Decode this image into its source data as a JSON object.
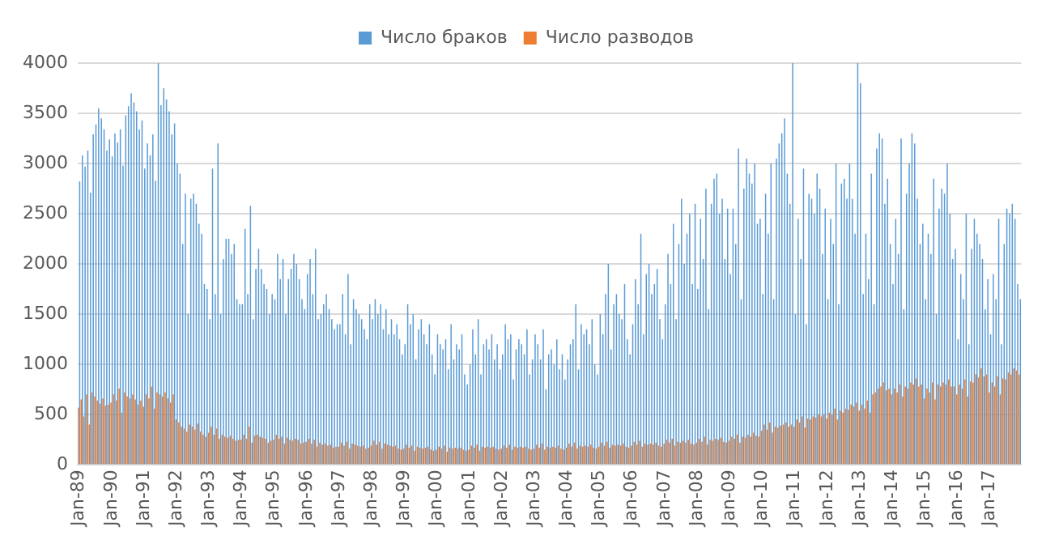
{
  "chart_data": {
    "type": "bar",
    "categories": [
      "Jan-89",
      null,
      null,
      null,
      null,
      null,
      null,
      null,
      null,
      null,
      null,
      null,
      "Jan-90",
      null,
      null,
      null,
      null,
      null,
      null,
      null,
      null,
      null,
      null,
      null,
      "Jan-91",
      null,
      null,
      null,
      null,
      null,
      null,
      null,
      null,
      null,
      null,
      null,
      "Jan-92",
      null,
      null,
      null,
      null,
      null,
      null,
      null,
      null,
      null,
      null,
      null,
      "Jan-93",
      null,
      null,
      null,
      null,
      null,
      null,
      null,
      null,
      null,
      null,
      null,
      "Jan-94",
      null,
      null,
      null,
      null,
      null,
      null,
      null,
      null,
      null,
      null,
      null,
      "Jan-95",
      null,
      null,
      null,
      null,
      null,
      null,
      null,
      null,
      null,
      null,
      null,
      "Jan-96",
      null,
      null,
      null,
      null,
      null,
      null,
      null,
      null,
      null,
      null,
      null,
      "Jan-97",
      null,
      null,
      null,
      null,
      null,
      null,
      null,
      null,
      null,
      null,
      null,
      "Jan-98",
      null,
      null,
      null,
      null,
      null,
      null,
      null,
      null,
      null,
      null,
      null,
      "Jan-99",
      null,
      null,
      null,
      null,
      null,
      null,
      null,
      null,
      null,
      null,
      null,
      "Jan-00",
      null,
      null,
      null,
      null,
      null,
      null,
      null,
      null,
      null,
      null,
      null,
      "Jan-01",
      null,
      null,
      null,
      null,
      null,
      null,
      null,
      null,
      null,
      null,
      null,
      "Jan-02",
      null,
      null,
      null,
      null,
      null,
      null,
      null,
      null,
      null,
      null,
      null,
      "Jan-03",
      null,
      null,
      null,
      null,
      null,
      null,
      null,
      null,
      null,
      null,
      null,
      "Jan-04",
      null,
      null,
      null,
      null,
      null,
      null,
      null,
      null,
      null,
      null,
      null,
      "Jan-05",
      null,
      null,
      null,
      null,
      null,
      null,
      null,
      null,
      null,
      null,
      null,
      "Jan-06",
      null,
      null,
      null,
      null,
      null,
      null,
      null,
      null,
      null,
      null,
      null,
      "Jan-07",
      null,
      null,
      null,
      null,
      null,
      null,
      null,
      null,
      null,
      null,
      null,
      "Jan-08",
      null,
      null,
      null,
      null,
      null,
      null,
      null,
      null,
      null,
      null,
      null,
      "Jan-09",
      null,
      null,
      null,
      null,
      null,
      null,
      null,
      null,
      null,
      null,
      null,
      "Jan-10",
      null,
      null,
      null,
      null,
      null,
      null,
      null,
      null,
      null,
      null,
      null,
      "Jan-11",
      null,
      null,
      null,
      null,
      null,
      null,
      null,
      null,
      null,
      null,
      null,
      "Jan-12",
      null,
      null,
      null,
      null,
      null,
      null,
      null,
      null,
      null,
      null,
      null,
      "Jan-13",
      null,
      null,
      null,
      null,
      null,
      null,
      null,
      null,
      null,
      null,
      null,
      "Jan-14",
      null,
      null,
      null,
      null,
      null,
      null,
      null,
      null,
      null,
      null,
      null,
      "Jan-15",
      null,
      null,
      null,
      null,
      null,
      null,
      null,
      null,
      null,
      null,
      null,
      "Jan-16",
      null,
      null,
      null,
      null,
      null,
      null,
      null,
      null,
      null,
      null,
      null,
      "Jan-17",
      null,
      null,
      null,
      null,
      null,
      null,
      null,
      null,
      null,
      null,
      null
    ],
    "series": [
      {
        "name": "Число браков",
        "color": "#5b9bd5",
        "values": [
          2820,
          3080,
          2970,
          3130,
          2710,
          3290,
          3390,
          3550,
          3450,
          3340,
          3130,
          3240,
          3070,
          3300,
          3210,
          3340,
          2980,
          3480,
          3570,
          3700,
          3610,
          3520,
          3340,
          3430,
          2950,
          3200,
          3080,
          3290,
          2830,
          4000,
          3580,
          3750,
          3640,
          3520,
          3290,
          3400,
          3000,
          2900,
          2200,
          2700,
          1500,
          2650,
          2700,
          2600,
          2400,
          2300,
          1800,
          1750,
          1450,
          2950,
          1700,
          3200,
          1500,
          2050,
          2250,
          2250,
          2100,
          2200,
          1650,
          1600,
          1600,
          2350,
          1700,
          2580,
          1450,
          1950,
          2150,
          1950,
          1800,
          1750,
          1500,
          1700,
          1650,
          2100,
          1850,
          2050,
          1500,
          1850,
          1950,
          2100,
          2000,
          1850,
          1650,
          1550,
          1900,
          2050,
          1700,
          2150,
          1450,
          1500,
          1600,
          1700,
          1550,
          1450,
          1350,
          1400,
          1400,
          1700,
          1300,
          1900,
          1200,
          1650,
          1550,
          1500,
          1450,
          1350,
          1250,
          1600,
          1450,
          1650,
          1500,
          1600,
          1350,
          1550,
          1300,
          1450,
          1300,
          1400,
          1250,
          1100,
          1200,
          1600,
          1400,
          1500,
          1050,
          1350,
          1450,
          1300,
          1200,
          1400,
          1100,
          900,
          1300,
          1200,
          1150,
          1250,
          950,
          1400,
          1050,
          1200,
          1150,
          1300,
          900,
          800,
          1000,
          1350,
          1100,
          1450,
          900,
          1200,
          1250,
          1150,
          1300,
          1050,
          1200,
          950,
          1100,
          1400,
          1250,
          1300,
          850,
          1150,
          1250,
          1200,
          1100,
          1350,
          900,
          1050,
          1300,
          1200,
          1050,
          1350,
          750,
          1100,
          1150,
          1000,
          1250,
          950,
          1100,
          850,
          1050,
          1200,
          1250,
          1600,
          950,
          1400,
          1300,
          1350,
          1200,
          1450,
          1000,
          900,
          1500,
          1300,
          1700,
          2000,
          1150,
          1600,
          1700,
          1500,
          1450,
          1800,
          1250,
          1100,
          1400,
          1850,
          1600,
          2300,
          1300,
          1900,
          2000,
          1700,
          1800,
          1950,
          1450,
          1250,
          1600,
          2100,
          1800,
          2400,
          1450,
          2200,
          2650,
          2000,
          2300,
          2500,
          1800,
          2600,
          1750,
          2450,
          2050,
          2750,
          1550,
          2600,
          2850,
          2900,
          2500,
          2650,
          2050,
          2550,
          1900,
          2550,
          2200,
          3150,
          1650,
          2750,
          3050,
          2900,
          2800,
          3000,
          2400,
          2450,
          1700,
          2700,
          2300,
          3000,
          1650,
          3050,
          3200,
          3300,
          3450,
          2900,
          2600,
          4000,
          1500,
          2450,
          2050,
          2950,
          1400,
          2700,
          2650,
          2500,
          2900,
          2750,
          2100,
          2550,
          1650,
          2450,
          2200,
          3000,
          1600,
          2800,
          2850,
          2650,
          3000,
          2650,
          2300,
          4000,
          3800,
          1700,
          2300,
          1850,
          2900,
          1600,
          3150,
          3300,
          3250,
          2600,
          2850,
          2200,
          1800,
          2450,
          2100,
          3250,
          1550,
          2700,
          3000,
          3300,
          3200,
          2650,
          2200,
          2400,
          1650,
          2300,
          2100,
          2850,
          1500,
          2550,
          2750,
          2700,
          3000,
          2500,
          2050,
          2150,
          1250,
          1900,
          1650,
          2500,
          1200,
          2150,
          2450,
          2300,
          2200,
          2050,
          1550,
          1850,
          1300,
          1900,
          1650,
          2450,
          1200,
          2200,
          2550,
          2500,
          2600,
          2450,
          1800,
          1650
        ]
      },
      {
        "name": "Число разводов",
        "color": "#ed7d31",
        "values": [
          570,
          650,
          480,
          700,
          400,
          720,
          680,
          640,
          610,
          660,
          590,
          600,
          620,
          700,
          640,
          760,
          520,
          720,
          680,
          660,
          700,
          650,
          600,
          640,
          580,
          700,
          660,
          780,
          560,
          720,
          700,
          680,
          720,
          660,
          620,
          700,
          450,
          420,
          380,
          360,
          330,
          400,
          380,
          350,
          410,
          330,
          300,
          280,
          320,
          380,
          300,
          360,
          260,
          300,
          280,
          270,
          290,
          260,
          240,
          250,
          250,
          300,
          260,
          380,
          220,
          290,
          300,
          280,
          270,
          260,
          220,
          240,
          250,
          300,
          260,
          280,
          210,
          270,
          250,
          240,
          260,
          250,
          210,
          220,
          230,
          260,
          210,
          250,
          180,
          220,
          200,
          210,
          190,
          200,
          170,
          180,
          180,
          220,
          190,
          230,
          160,
          210,
          200,
          190,
          180,
          190,
          160,
          170,
          190,
          240,
          200,
          230,
          160,
          210,
          200,
          190,
          180,
          190,
          160,
          150,
          160,
          200,
          170,
          190,
          140,
          180,
          170,
          160,
          170,
          180,
          150,
          140,
          150,
          180,
          160,
          190,
          130,
          170,
          160,
          170,
          160,
          170,
          150,
          140,
          150,
          190,
          170,
          200,
          140,
          180,
          170,
          180,
          170,
          180,
          160,
          150,
          160,
          190,
          170,
          200,
          150,
          180,
          170,
          180,
          170,
          180,
          160,
          150,
          160,
          200,
          170,
          210,
          150,
          180,
          170,
          180,
          170,
          190,
          160,
          150,
          170,
          210,
          180,
          220,
          160,
          190,
          180,
          190,
          180,
          200,
          170,
          160,
          180,
          220,
          190,
          230,
          170,
          200,
          190,
          200,
          190,
          210,
          180,
          170,
          190,
          230,
          200,
          240,
          180,
          210,
          200,
          210,
          200,
          220,
          190,
          180,
          210,
          250,
          220,
          260,
          190,
          230,
          220,
          240,
          220,
          250,
          210,
          200,
          220,
          260,
          230,
          280,
          200,
          250,
          240,
          260,
          250,
          270,
          230,
          220,
          240,
          280,
          260,
          300,
          220,
          280,
          270,
          300,
          280,
          320,
          290,
          280,
          340,
          400,
          350,
          420,
          320,
          380,
          370,
          390,
          400,
          420,
          380,
          400,
          380,
          450,
          420,
          480,
          370,
          460,
          450,
          480,
          470,
          500,
          480,
          500,
          460,
          520,
          500,
          560,
          450,
          540,
          520,
          560,
          550,
          600,
          580,
          620,
          540,
          600,
          560,
          640,
          520,
          700,
          720,
          760,
          780,
          820,
          740,
          760,
          700,
          760,
          720,
          800,
          680,
          780,
          760,
          820,
          800,
          860,
          780,
          800,
          660,
          760,
          720,
          820,
          650,
          800,
          780,
          820,
          800,
          850,
          780,
          780,
          700,
          800,
          760,
          850,
          680,
          830,
          820,
          900,
          870,
          960,
          880,
          900,
          720,
          820,
          780,
          880,
          700,
          860,
          850,
          920,
          900,
          960,
          940,
          900
        ]
      }
    ],
    "ylim": [
      0,
      4000
    ],
    "yticks": [
      0,
      500,
      1000,
      1500,
      2000,
      2500,
      3000,
      3500,
      4000
    ],
    "grid": "y",
    "legend": "top"
  }
}
